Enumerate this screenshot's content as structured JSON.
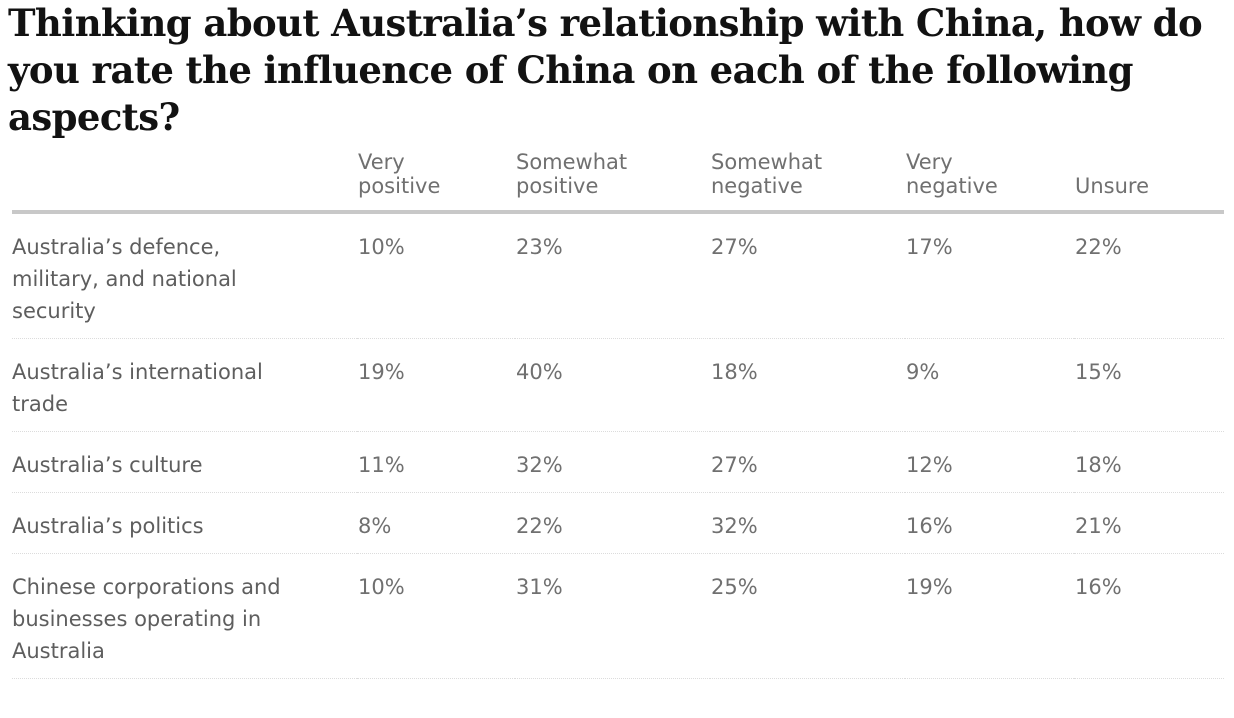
{
  "title": "Thinking about Australia’s relationship with China, how do you rate the influence of China on each of the following aspects?",
  "chart_data": {
    "type": "table",
    "title": "Thinking about Australia’s relationship with China, how do you rate the influence of China on each of the following aspects?",
    "columns": [
      "",
      "Very positive",
      "Somewhat positive",
      "Somewhat negative",
      "Very negative",
      "Unsure"
    ],
    "rows": [
      {
        "label": "Australia’s defence, military, and national security",
        "values": [
          "10%",
          "23%",
          "27%",
          "17%",
          "22%"
        ]
      },
      {
        "label": "Australia’s international trade",
        "values": [
          "19%",
          "40%",
          "18%",
          "9%",
          "15%"
        ]
      },
      {
        "label": "Australia’s culture",
        "values": [
          "11%",
          "32%",
          "27%",
          "12%",
          "18%"
        ]
      },
      {
        "label": "Australia’s politics",
        "values": [
          "8%",
          "22%",
          "32%",
          "16%",
          "21%"
        ]
      },
      {
        "label": "Chinese corporations and businesses operating in Australia",
        "values": [
          "10%",
          "31%",
          "25%",
          "19%",
          "16%"
        ]
      }
    ]
  },
  "colors": {
    "title": "#121212",
    "text": "#707070",
    "header_rule": "#c8c8c8",
    "row_divider": "#dcdcdc"
  }
}
